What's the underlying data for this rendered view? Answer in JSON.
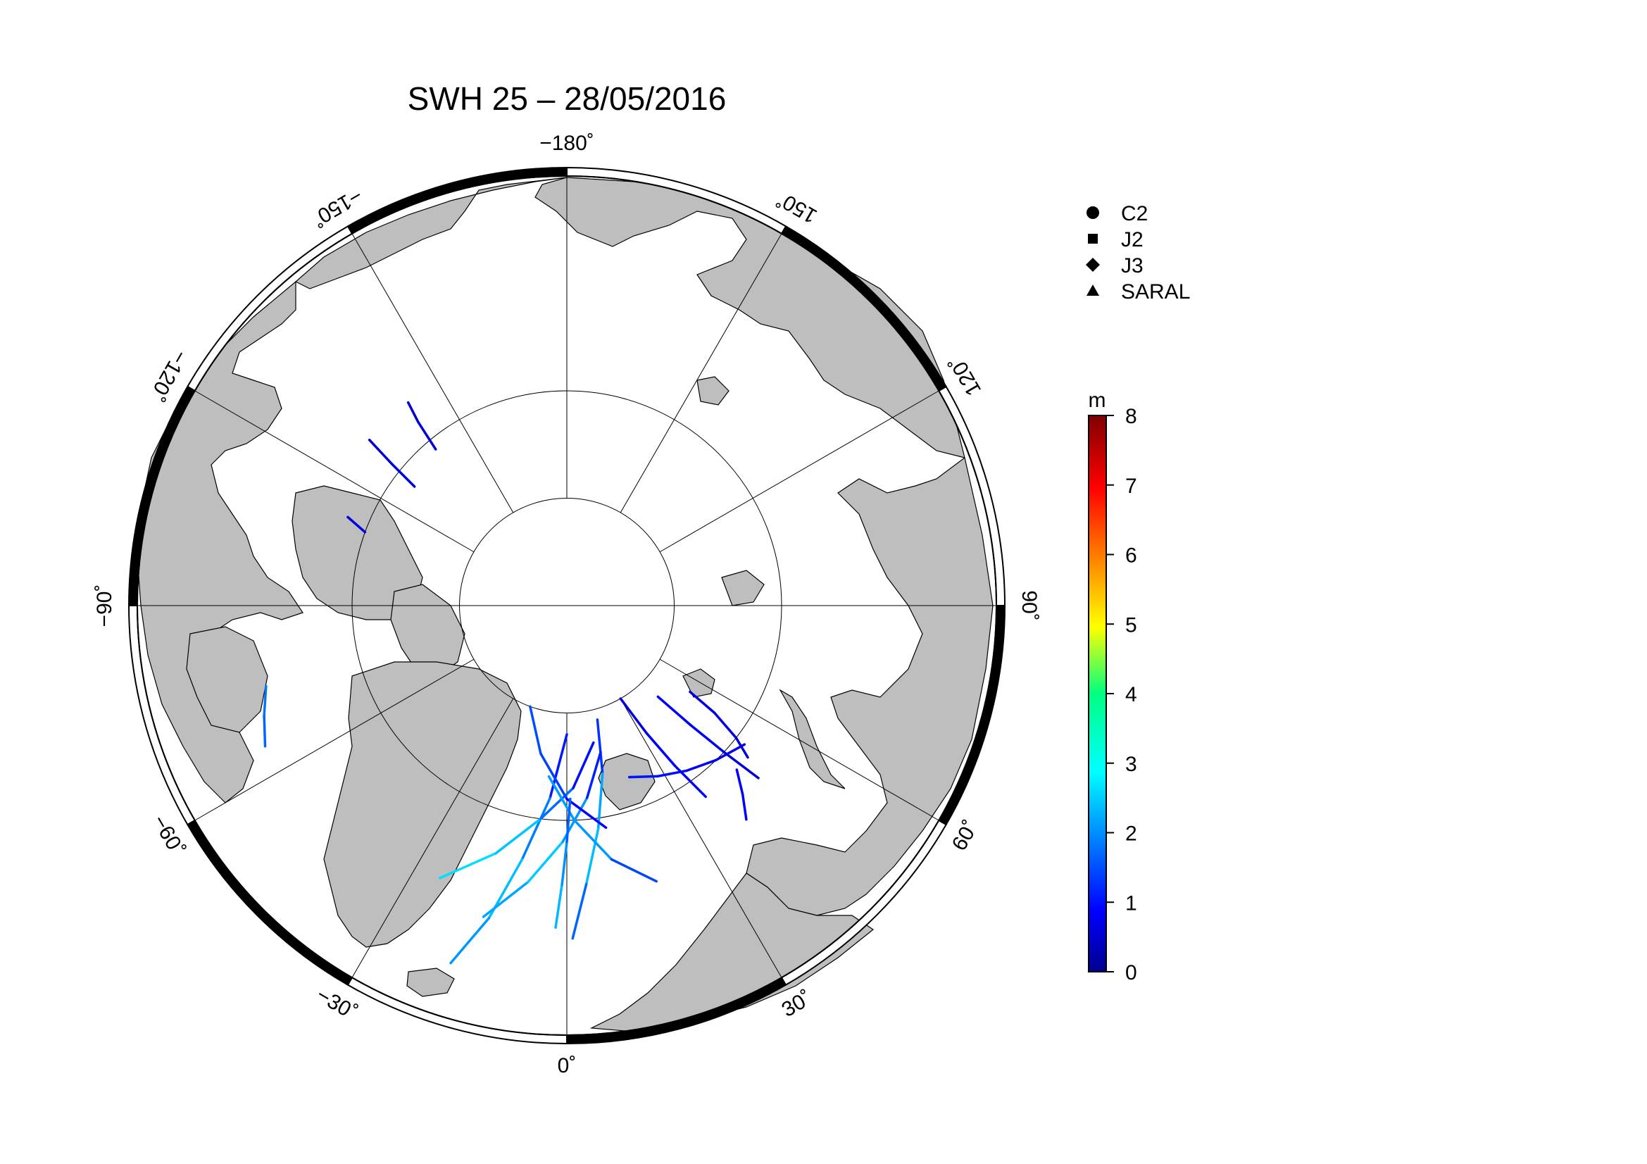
{
  "title": "SWH 25 – 28/05/2016",
  "map": {
    "projection": "north-polar-stereographic",
    "ocean_color": "#ffffff",
    "land_color": "#bebebe",
    "graticule_color": "#000000",
    "longitude_labels": [
      {
        "lon": 180,
        "text": "−180˚"
      },
      {
        "lon": 150,
        "text": "150˚"
      },
      {
        "lon": 120,
        "text": "120˚"
      },
      {
        "lon": 90,
        "text": "90˚"
      },
      {
        "lon": 60,
        "text": "60˚"
      },
      {
        "lon": 30,
        "text": "30˚"
      },
      {
        "lon": 0,
        "text": "0˚"
      },
      {
        "lon": -30,
        "text": "−30˚"
      },
      {
        "lon": -60,
        "text": "−60˚"
      },
      {
        "lon": -90,
        "text": "−90˚"
      },
      {
        "lon": -120,
        "text": "−120˚"
      },
      {
        "lon": -150,
        "text": "−150˚"
      }
    ],
    "graticule_meridians_deg": [
      0,
      30,
      60,
      90,
      120,
      150,
      180,
      210,
      240,
      270,
      300,
      330
    ],
    "graticule_parallels_deg": [
      80,
      70
    ],
    "lat_min": 50
  },
  "legend": {
    "items": [
      {
        "symbol": "circle",
        "label": "C2"
      },
      {
        "symbol": "square",
        "label": "J2"
      },
      {
        "symbol": "diamond",
        "label": "J3"
      },
      {
        "symbol": "triangle",
        "label": "SARAL"
      }
    ]
  },
  "colorbar": {
    "unit": "m",
    "min": 0,
    "max": 8,
    "ticks": [
      "0",
      "1",
      "2",
      "3",
      "4",
      "5",
      "6",
      "7",
      "8"
    ],
    "colormap": "jet"
  },
  "chart_data": {
    "type": "map",
    "variable": "SWH",
    "units": "m",
    "tracks": [
      {
        "name": "C2",
        "points": [
          [
            0,
            78
          ],
          [
            -5,
            72
          ],
          [
            -10,
            66
          ],
          [
            -14,
            60
          ],
          [
            -18,
            55
          ]
        ],
        "swh": [
          0.8,
          1.6,
          2.4,
          2.6,
          1.8
        ]
      },
      {
        "name": "J2",
        "points": [
          [
            15,
            79
          ],
          [
            12,
            74
          ],
          [
            8,
            69
          ],
          [
            4,
            64
          ],
          [
            1,
            59
          ]
        ],
        "swh": [
          1.0,
          1.8,
          2.8,
          2.2,
          1.4
        ]
      },
      {
        "name": "J3",
        "points": [
          [
            -15,
            60
          ],
          [
            -8,
            64
          ],
          [
            -1,
            68
          ],
          [
            6,
            72
          ],
          [
            13,
            76
          ]
        ],
        "swh": [
          2.2,
          2.4,
          2.8,
          1.6,
          0.9
        ]
      },
      {
        "name": "SARAL",
        "points": [
          [
            -25,
            62
          ],
          [
            -16,
            66
          ],
          [
            -7,
            70
          ],
          [
            2,
            73
          ],
          [
            11,
            77
          ]
        ],
        "swh": [
          2.6,
          2.9,
          2.2,
          1.5,
          0.7
        ]
      },
      {
        "name": "C2",
        "points": [
          [
            30,
            80
          ],
          [
            32,
            76
          ],
          [
            34,
            72
          ],
          [
            36,
            68
          ]
        ],
        "swh": [
          0.6,
          0.9,
          1.1,
          0.8
        ]
      },
      {
        "name": "J2",
        "points": [
          [
            20,
            73
          ],
          [
            28,
            72
          ],
          [
            36,
            71
          ],
          [
            44,
            70
          ],
          [
            52,
            69
          ]
        ],
        "swh": [
          1.1,
          1.2,
          1.0,
          0.9,
          0.8
        ]
      },
      {
        "name": "J3",
        "points": [
          [
            45,
            78
          ],
          [
            46,
            74
          ],
          [
            47,
            70
          ],
          [
            48,
            66
          ]
        ],
        "swh": [
          0.9,
          1.0,
          0.8,
          0.6
        ]
      },
      {
        "name": "SARAL",
        "points": [
          [
            55,
            76
          ],
          [
            54,
            73
          ],
          [
            52,
            70
          ],
          [
            50,
            68
          ]
        ],
        "swh": [
          0.8,
          0.7,
          0.9,
          0.6
        ]
      },
      {
        "name": "C2",
        "points": [
          [
            -20,
            80
          ],
          [
            -10,
            76
          ],
          [
            0,
            72
          ],
          [
            10,
            69
          ]
        ],
        "swh": [
          1.4,
          1.8,
          1.2,
          0.8
        ]
      },
      {
        "name": "J2",
        "points": [
          [
            -6,
            74
          ],
          [
            2,
            70
          ],
          [
            10,
            66
          ],
          [
            18,
            63
          ]
        ],
        "swh": [
          2.0,
          2.5,
          1.9,
          1.2
        ]
      },
      {
        "name": "J3",
        "points": [
          [
            -2,
            60
          ],
          [
            -1,
            64
          ],
          [
            0,
            68
          ],
          [
            1,
            72
          ]
        ],
        "swh": [
          2.6,
          2.3,
          2.0,
          1.5
        ]
      },
      {
        "name": "SARAL",
        "points": [
          [
            -128,
            72
          ],
          [
            -129,
            69
          ],
          [
            -130,
            66
          ]
        ],
        "swh": [
          0.8,
          0.7,
          0.6
        ]
      },
      {
        "name": "C2",
        "points": [
          [
            -140,
            71
          ],
          [
            -141,
            68
          ],
          [
            -142,
            66
          ]
        ],
        "swh": [
          0.6,
          0.7,
          0.6
        ]
      },
      {
        "name": "J2",
        "points": [
          [
            -75,
            61
          ],
          [
            -70,
            60
          ],
          [
            -65,
            59
          ]
        ],
        "swh": [
          1.8,
          2.0,
          1.6
        ]
      },
      {
        "name": "J3",
        "points": [
          [
            -110,
            70
          ],
          [
            -112,
            68
          ]
        ],
        "swh": [
          0.7,
          0.8
        ]
      },
      {
        "name": "SARAL",
        "points": [
          [
            40,
            64
          ],
          [
            43,
            66
          ],
          [
            46,
            68
          ]
        ],
        "swh": [
          0.9,
          1.1,
          0.8
        ]
      }
    ]
  }
}
